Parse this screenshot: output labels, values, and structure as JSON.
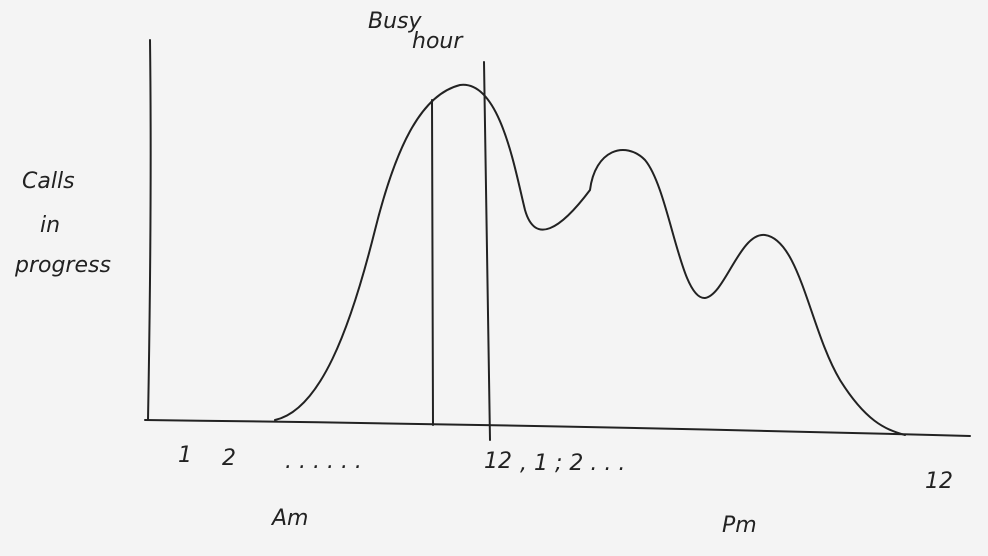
{
  "title": {
    "line1": "Busy",
    "line2": "hour"
  },
  "y_label": [
    "Calls",
    "in",
    "progress"
  ],
  "x_labels": [
    "1",
    "2",
    ". . . . . .",
    "12",
    ", 1 ; 2 . . .",
    "12"
  ],
  "period_labels": [
    "Am",
    "Pm"
  ]
}
